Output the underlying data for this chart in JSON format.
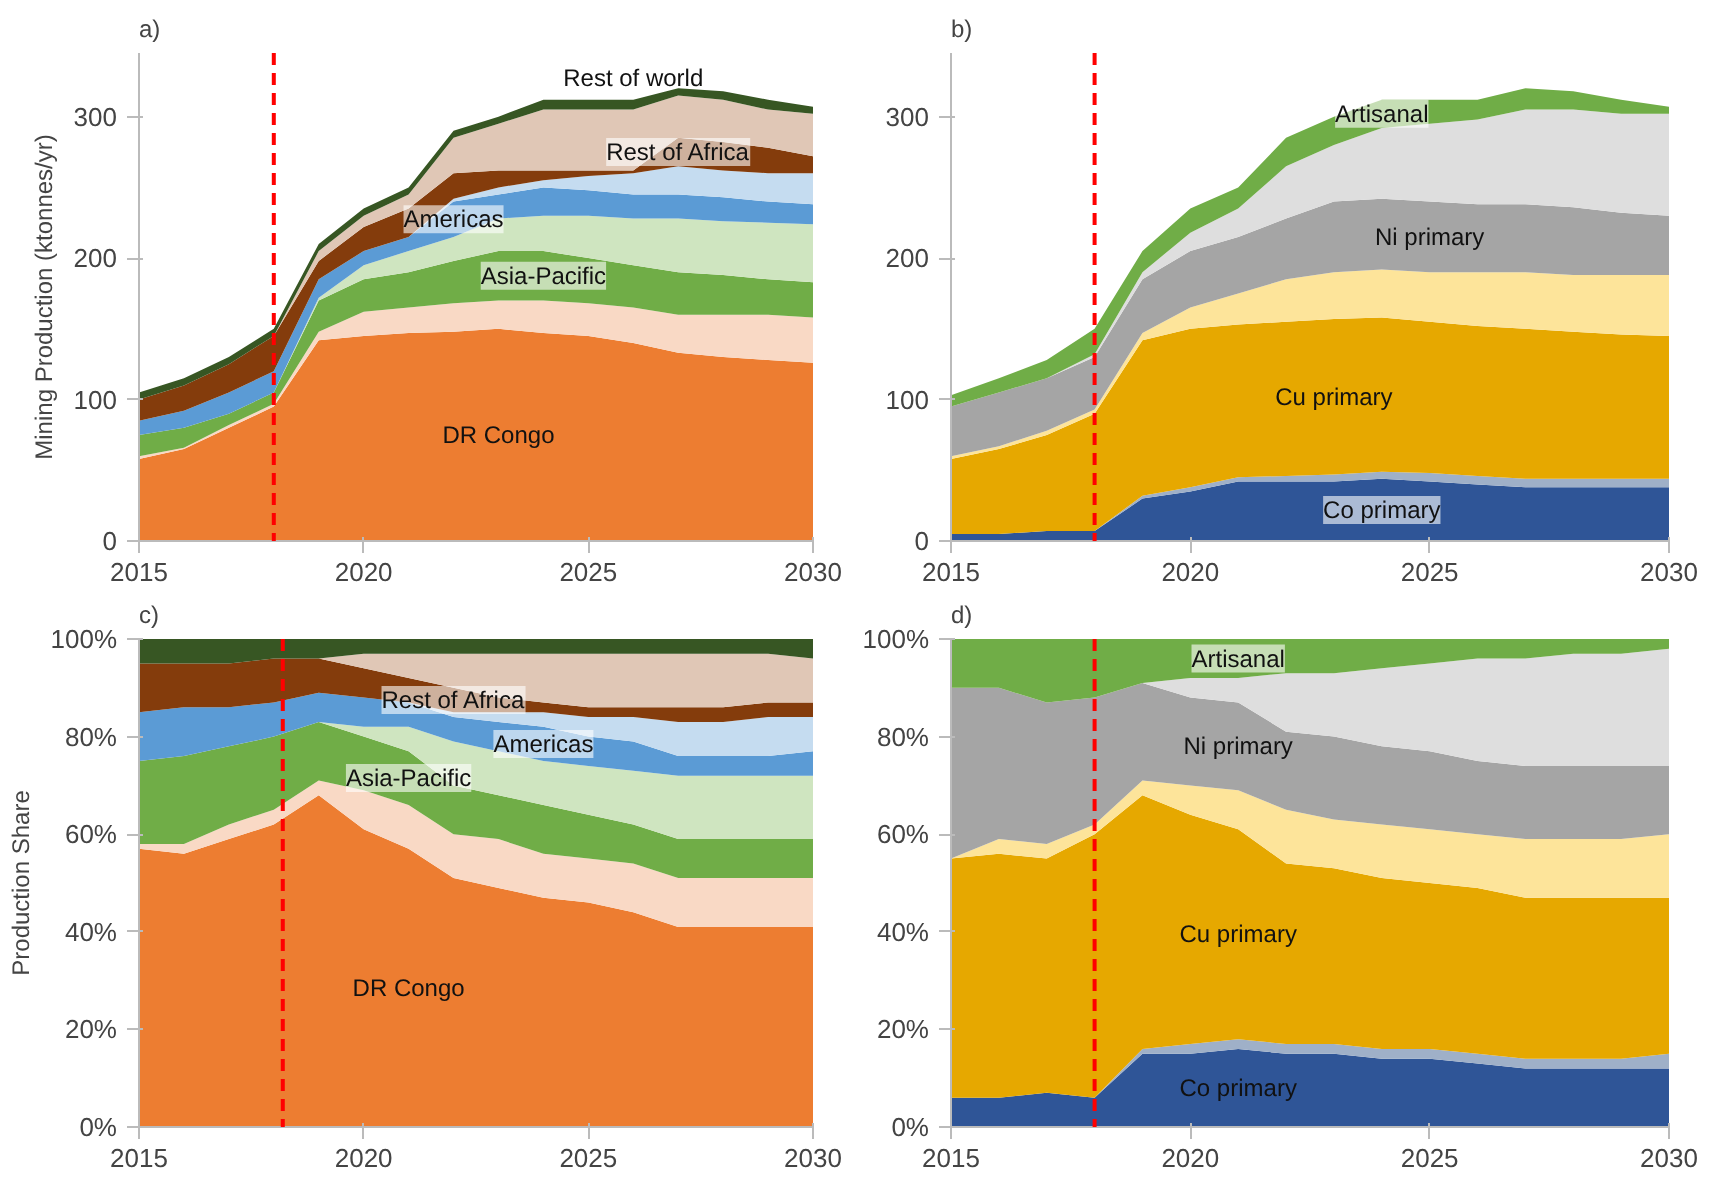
{
  "chart_data": [
    {
      "type": "area",
      "title": "a)",
      "ylabel": "Mining Production (ktonnes/yr)",
      "stacked": true,
      "x": [
        2015,
        2016,
        2017,
        2018,
        2019,
        2020,
        2021,
        2022,
        2023,
        2024,
        2025,
        2026,
        2027,
        2028,
        2029,
        2030
      ],
      "xlim": [
        2015,
        2030
      ],
      "xticks": [
        2015,
        2020,
        2025,
        2030
      ],
      "ylim": [
        0,
        345
      ],
      "yticks": [
        0,
        100,
        200,
        300
      ],
      "grid": false,
      "ref_lines": [
        {
          "axis": "x",
          "value": 2018,
          "color": "#ff0000",
          "line_style": "dashed"
        }
      ],
      "series": [
        {
          "name": "DR Congo",
          "color": "#ed7d31",
          "values": [
            58,
            65,
            80,
            95,
            142,
            145,
            147,
            148,
            150,
            147,
            145,
            140,
            133,
            130,
            128,
            126
          ]
        },
        {
          "color": "#f9d9c5",
          "values": [
            2,
            1,
            2,
            2,
            6,
            17,
            18,
            20,
            20,
            23,
            23,
            25,
            27,
            30,
            32,
            32
          ]
        },
        {
          "name": "Asia-Pacific",
          "color": "#70ad47",
          "values": [
            15,
            14,
            8,
            8,
            22,
            23,
            25,
            30,
            35,
            35,
            32,
            30,
            30,
            28,
            25,
            25
          ]
        },
        {
          "color": "#cfe5c0",
          "values": [
            0,
            0,
            0,
            0,
            2,
            10,
            15,
            17,
            23,
            25,
            30,
            33,
            38,
            38,
            40,
            41
          ]
        },
        {
          "name": "Americas",
          "color": "#5b9bd5",
          "values": [
            10,
            12,
            15,
            15,
            13,
            10,
            10,
            25,
            17,
            20,
            18,
            17,
            17,
            17,
            15,
            14
          ]
        },
        {
          "color": "#c5dcf0",
          "values": [
            0,
            0,
            0,
            0,
            0,
            0,
            0,
            2,
            5,
            5,
            10,
            15,
            20,
            19,
            20,
            22
          ]
        },
        {
          "name": "Rest of Africa",
          "color": "#843c0c",
          "values": [
            15,
            18,
            20,
            25,
            13,
            17,
            20,
            18,
            12,
            7,
            4,
            2,
            20,
            20,
            18,
            12
          ]
        },
        {
          "color": "#e0c7b6",
          "values": [
            0,
            0,
            0,
            0,
            7,
            8,
            10,
            25,
            33,
            43,
            43,
            43,
            30,
            30,
            27,
            30
          ]
        },
        {
          "name": "Rest of world",
          "color": "#375623",
          "values": [
            5,
            5,
            5,
            5,
            5,
            5,
            5,
            5,
            5,
            7,
            7,
            7,
            5,
            6,
            7,
            5
          ]
        }
      ]
    },
    {
      "type": "area",
      "title": "b)",
      "stacked": true,
      "x": [
        2015,
        2016,
        2017,
        2018,
        2019,
        2020,
        2021,
        2022,
        2023,
        2024,
        2025,
        2026,
        2027,
        2028,
        2029,
        2030
      ],
      "xlim": [
        2015,
        2030
      ],
      "xticks": [
        2015,
        2020,
        2025,
        2030
      ],
      "ylim": [
        0,
        345
      ],
      "yticks": [
        0,
        100,
        200,
        300
      ],
      "grid": false,
      "ref_lines": [
        {
          "axis": "x",
          "value": 2018,
          "color": "#ff0000",
          "line_style": "dashed"
        }
      ],
      "series": [
        {
          "name": "Co primary",
          "color": "#2f5597",
          "values": [
            5,
            5,
            7,
            7,
            30,
            35,
            42,
            42,
            42,
            44,
            42,
            40,
            38,
            38,
            38,
            38
          ]
        },
        {
          "color": "#9fb0c8",
          "values": [
            0,
            0,
            0,
            0,
            2,
            3,
            3,
            4,
            5,
            5,
            6,
            6,
            6,
            6,
            6,
            6
          ]
        },
        {
          "name": "Cu primary",
          "color": "#e6a800",
          "values": [
            53,
            60,
            68,
            83,
            110,
            112,
            108,
            109,
            110,
            109,
            107,
            106,
            106,
            104,
            102,
            101
          ]
        },
        {
          "color": "#fde49a",
          "values": [
            2,
            2,
            3,
            3,
            5,
            15,
            22,
            30,
            33,
            34,
            35,
            38,
            40,
            40,
            42,
            43
          ]
        },
        {
          "name": "Ni primary",
          "color": "#a5a5a5",
          "values": [
            35,
            38,
            37,
            37,
            38,
            40,
            40,
            43,
            50,
            50,
            50,
            48,
            48,
            48,
            44,
            42
          ]
        },
        {
          "color": "#dedede",
          "values": [
            0,
            0,
            0,
            2,
            5,
            13,
            20,
            37,
            40,
            50,
            55,
            60,
            67,
            69,
            70,
            72
          ]
        },
        {
          "name": "Artisanal",
          "color": "#70ad47",
          "values": [
            8,
            10,
            13,
            18,
            15,
            17,
            15,
            20,
            20,
            20,
            17,
            14,
            15,
            13,
            10,
            5
          ]
        }
      ]
    },
    {
      "type": "area",
      "title": "c)",
      "ylabel": "Production Share",
      "stacked": true,
      "x": [
        2015,
        2016,
        2017,
        2018,
        2019,
        2020,
        2021,
        2022,
        2023,
        2024,
        2025,
        2026,
        2027,
        2028,
        2029,
        2030
      ],
      "xlim": [
        2015,
        2030
      ],
      "xticks": [
        2015,
        2020,
        2025,
        2030
      ],
      "ylim": [
        0,
        100
      ],
      "yticks": [
        {
          "value": 0,
          "label": "0%"
        },
        {
          "value": 20,
          "label": "20%"
        },
        {
          "value": 40,
          "label": "40%"
        },
        {
          "value": 60,
          "label": "60%"
        },
        {
          "value": 80,
          "label": "80%"
        },
        {
          "value": 100,
          "label": "100%"
        }
      ],
      "grid": false,
      "ref_lines": [
        {
          "axis": "x",
          "value": 2018.2,
          "color": "#ff0000",
          "line_style": "dashed"
        }
      ],
      "series": [
        {
          "name": "DR Congo",
          "color": "#ed7d31",
          "values": [
            57,
            56,
            59,
            62,
            68,
            61,
            57,
            51,
            49,
            47,
            46,
            44,
            41,
            41,
            41,
            41
          ]
        },
        {
          "color": "#f9d9c5",
          "values": [
            1,
            2,
            3,
            3,
            3,
            8,
            9,
            9,
            10,
            9,
            9,
            10,
            10,
            10,
            10,
            10
          ]
        },
        {
          "name": "Asia-Pacific",
          "color": "#70ad47",
          "values": [
            17,
            18,
            16,
            15,
            12,
            11,
            11,
            10,
            9,
            10,
            9,
            8,
            8,
            8,
            8,
            8
          ]
        },
        {
          "color": "#cfe5c0",
          "values": [
            0,
            0,
            0,
            0,
            0,
            2,
            5,
            9,
            9,
            9,
            10,
            11,
            13,
            13,
            13,
            13
          ]
        },
        {
          "name": "Americas",
          "color": "#5b9bd5",
          "values": [
            10,
            10,
            8,
            7,
            6,
            6,
            5,
            5,
            6,
            7,
            6,
            6,
            4,
            4,
            4,
            5
          ]
        },
        {
          "color": "#c5dcf0",
          "values": [
            0,
            0,
            0,
            0,
            0,
            0,
            0,
            1,
            2,
            3,
            4,
            5,
            7,
            7,
            8,
            7
          ]
        },
        {
          "name": "Rest of Africa",
          "color": "#843c0c",
          "values": [
            10,
            9,
            9,
            9,
            7,
            6,
            5,
            5,
            3,
            2,
            2,
            2,
            3,
            3,
            3,
            3
          ]
        },
        {
          "color": "#e0c7b6",
          "values": [
            0,
            0,
            0,
            0,
            0,
            3,
            5,
            7,
            9,
            10,
            11,
            11,
            11,
            11,
            10,
            9
          ]
        },
        {
          "color": "#375623",
          "values": [
            5,
            5,
            5,
            4,
            4,
            3,
            3,
            3,
            3,
            3,
            3,
            3,
            3,
            3,
            3,
            4
          ]
        }
      ]
    },
    {
      "type": "area",
      "title": "d)",
      "stacked": true,
      "x": [
        2015,
        2016,
        2017,
        2018,
        2019,
        2020,
        2021,
        2022,
        2023,
        2024,
        2025,
        2026,
        2027,
        2028,
        2029,
        2030
      ],
      "xlim": [
        2015,
        2030
      ],
      "xticks": [
        2015,
        2020,
        2025,
        2030
      ],
      "ylim": [
        0,
        100
      ],
      "yticks": [
        {
          "value": 0,
          "label": "0%"
        },
        {
          "value": 20,
          "label": "20%"
        },
        {
          "value": 40,
          "label": "40%"
        },
        {
          "value": 60,
          "label": "60%"
        },
        {
          "value": 80,
          "label": "80%"
        },
        {
          "value": 100,
          "label": "100%"
        }
      ],
      "grid": false,
      "ref_lines": [
        {
          "axis": "x",
          "value": 2018,
          "color": "#ff0000",
          "line_style": "dashed"
        }
      ],
      "series": [
        {
          "name": "Co primary",
          "color": "#2f5597",
          "values": [
            6,
            6,
            7,
            6,
            15,
            15,
            16,
            15,
            15,
            14,
            14,
            13,
            12,
            12,
            12,
            12
          ]
        },
        {
          "color": "#9fb0c8",
          "values": [
            0,
            0,
            0,
            0,
            1,
            2,
            2,
            2,
            2,
            2,
            2,
            2,
            2,
            2,
            2,
            3
          ]
        },
        {
          "name": "Cu primary",
          "color": "#e6a800",
          "values": [
            49,
            50,
            48,
            54,
            52,
            47,
            43,
            37,
            36,
            35,
            34,
            34,
            33,
            33,
            33,
            32
          ]
        },
        {
          "color": "#fde49a",
          "values": [
            0,
            3,
            3,
            2,
            3,
            6,
            8,
            11,
            10,
            11,
            11,
            11,
            12,
            12,
            12,
            13
          ]
        },
        {
          "name": "Ni primary",
          "color": "#a5a5a5",
          "values": [
            35,
            31,
            29,
            26,
            20,
            18,
            18,
            16,
            17,
            16,
            16,
            15,
            15,
            15,
            15,
            14
          ]
        },
        {
          "color": "#dedede",
          "values": [
            0,
            0,
            0,
            0,
            0,
            4,
            5,
            12,
            13,
            16,
            18,
            21,
            22,
            23,
            23,
            24
          ]
        },
        {
          "name": "Artisanal",
          "color": "#70ad47",
          "values": [
            10,
            10,
            13,
            12,
            9,
            8,
            8,
            7,
            7,
            6,
            5,
            4,
            4,
            3,
            3,
            2
          ]
        }
      ]
    }
  ]
}
